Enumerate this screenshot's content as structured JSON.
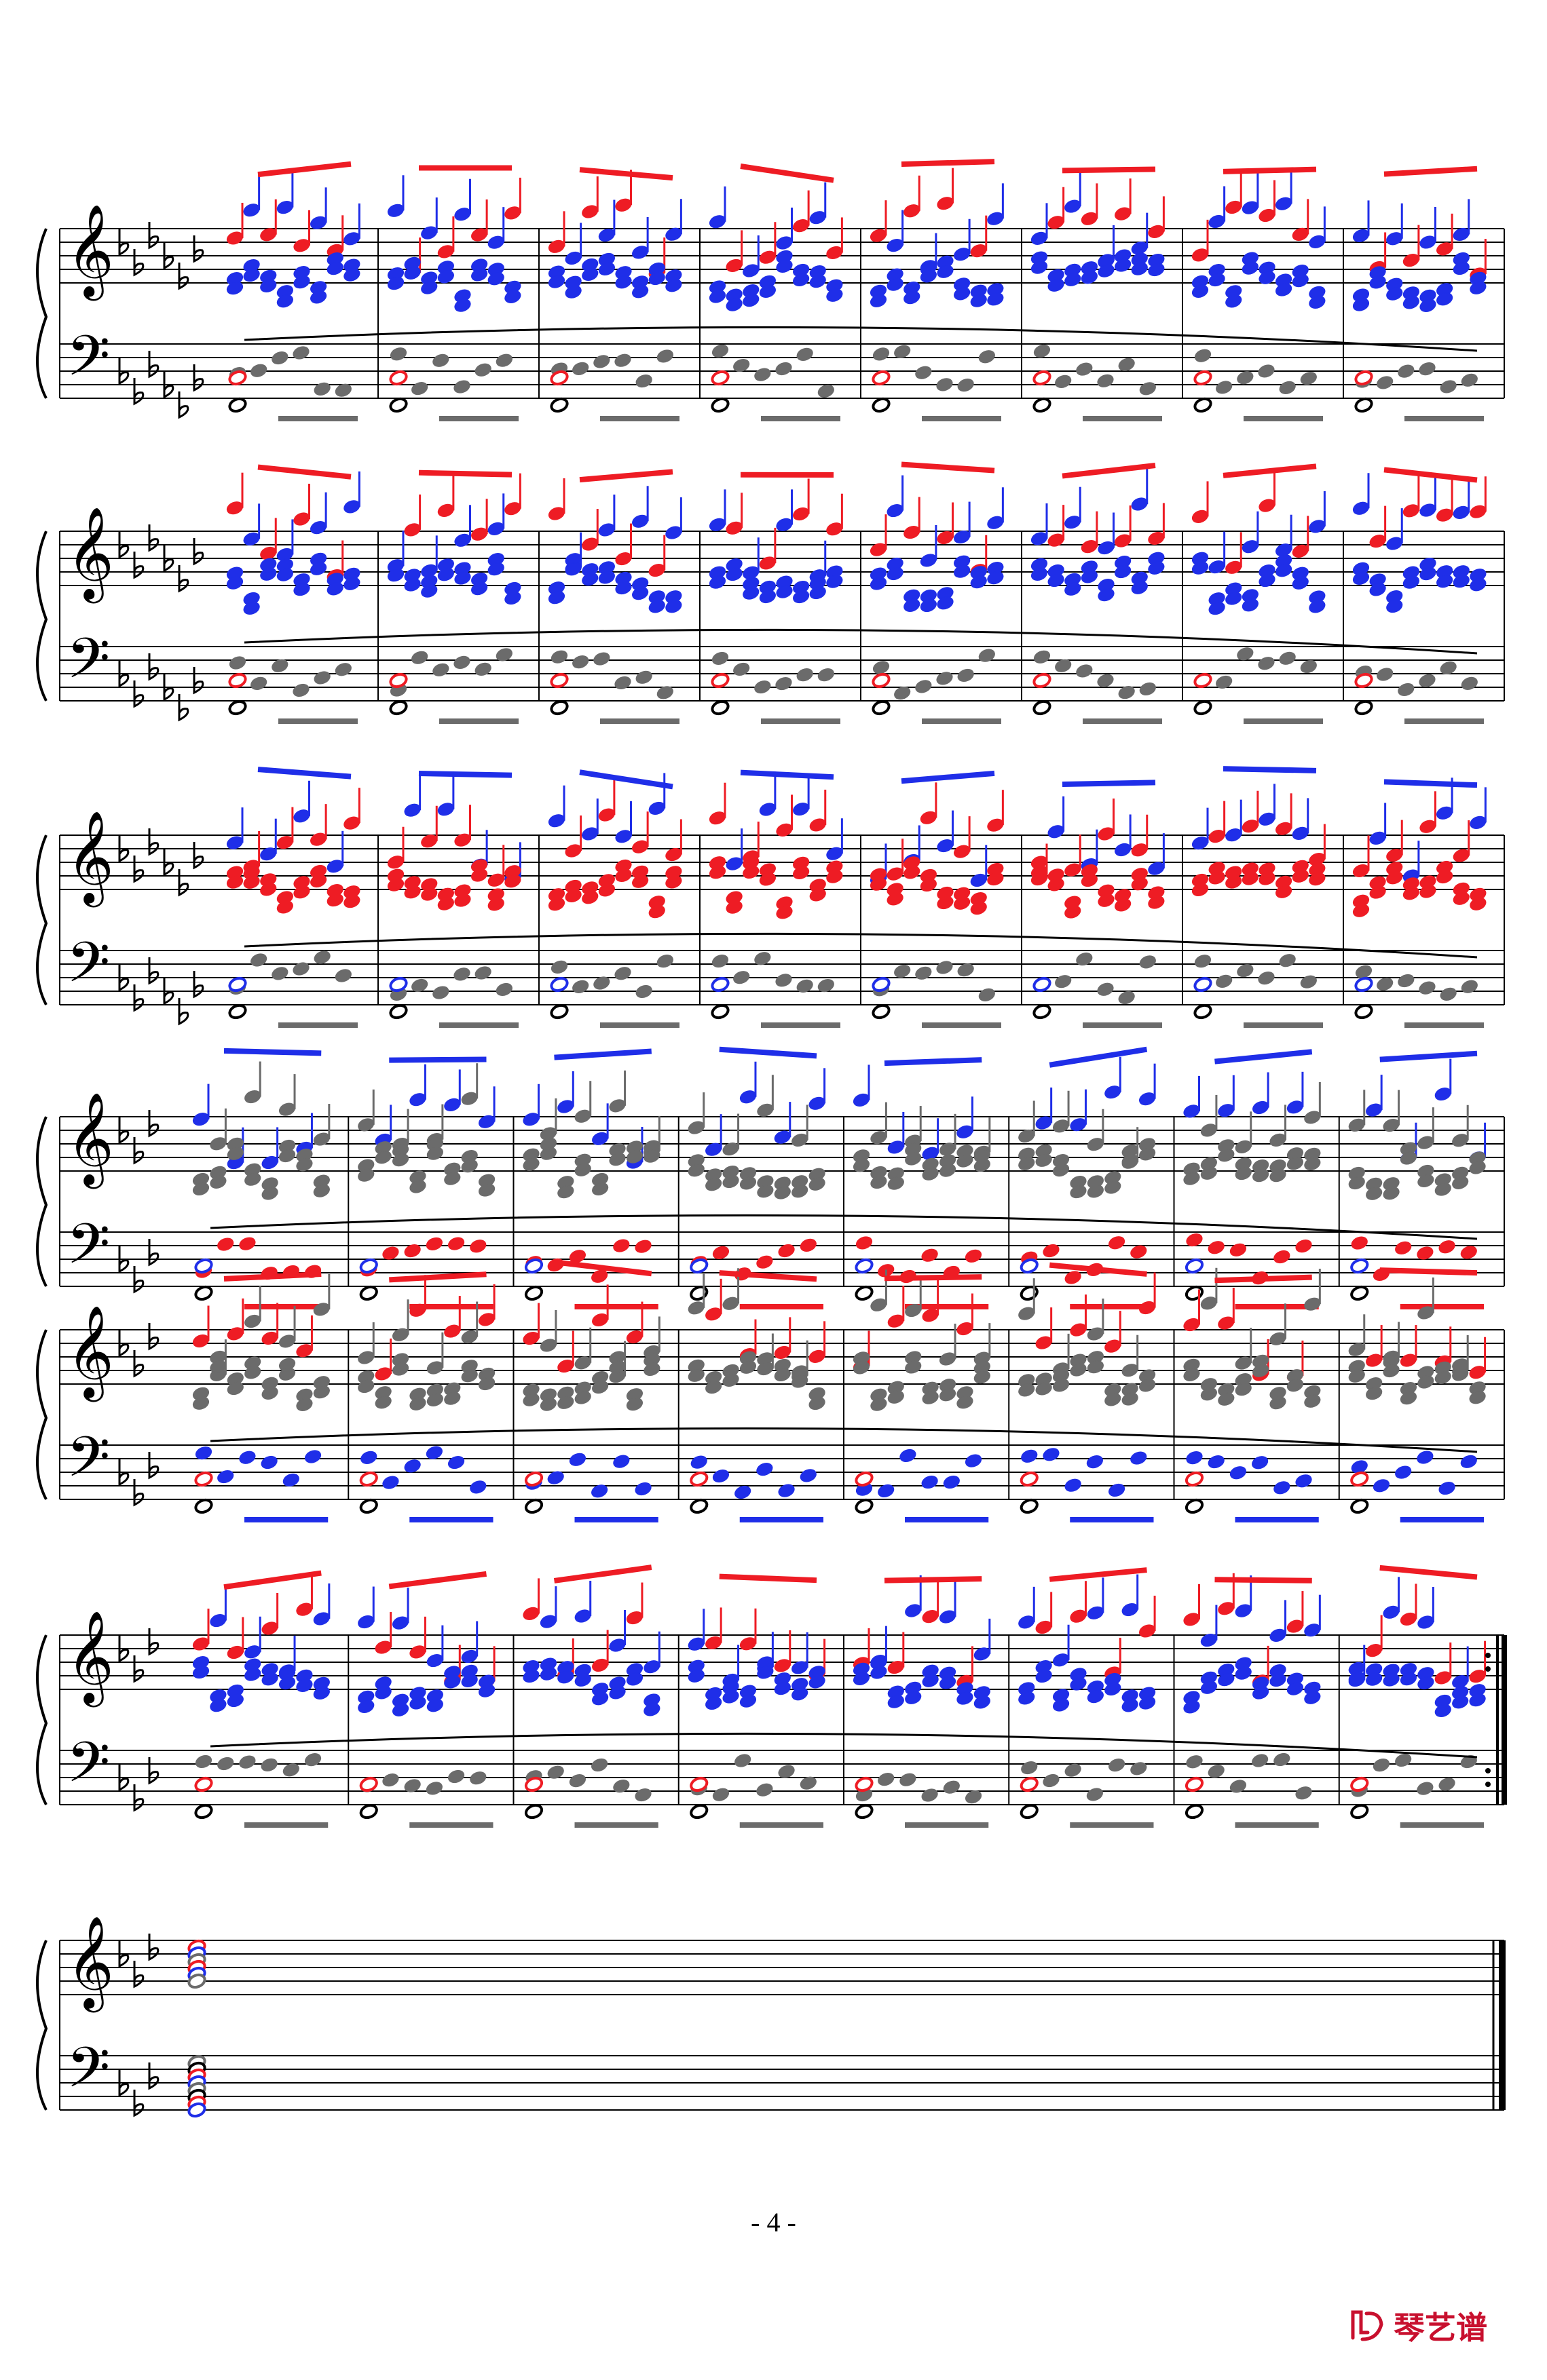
{
  "page": {
    "number_label": "- 4 -"
  },
  "brand": {
    "logo_text": "琴艺谱"
  },
  "colors": {
    "red": "#ee1c24",
    "blue": "#1f2ee8",
    "gray": "#6b6b6b",
    "black": "#000000",
    "brand": "#c8102e"
  },
  "score": {
    "systems": [
      {
        "key": "6 flats",
        "measures": 8,
        "palette": [
          "red",
          "blue",
          "gray",
          "black"
        ]
      },
      {
        "key": "6 flats",
        "measures": 8,
        "palette": [
          "red",
          "blue",
          "gray",
          "black"
        ]
      },
      {
        "key": "6 flats",
        "measures": 8,
        "palette": [
          "blue",
          "red",
          "gray",
          "black"
        ],
        "ends_with_key_change": "3 flats"
      },
      {
        "key": "3 flats",
        "measures": 8,
        "palette": [
          "blue",
          "gray",
          "red",
          "black"
        ]
      },
      {
        "key": "3 flats",
        "measures": 8,
        "palette": [
          "red",
          "gray",
          "blue",
          "black"
        ]
      },
      {
        "key": "3 flats",
        "measures": 8,
        "palette": [
          "red",
          "blue",
          "gray",
          "black"
        ],
        "ends_with": "repeat"
      },
      {
        "key": "3 flats",
        "measures": 1,
        "palette": [
          "red",
          "blue",
          "gray",
          "black"
        ],
        "ends_with": "final"
      }
    ]
  }
}
